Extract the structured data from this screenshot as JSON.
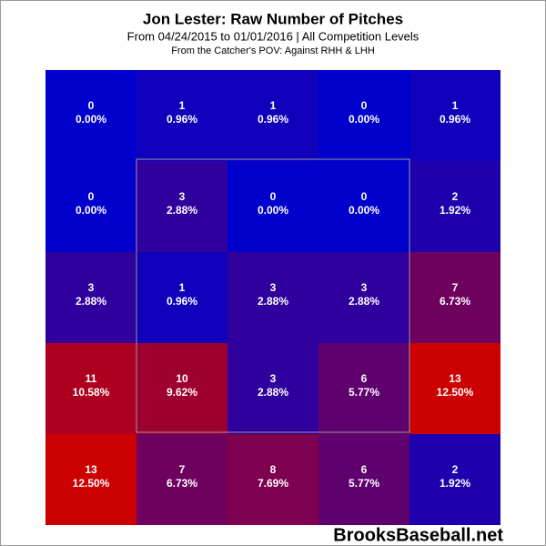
{
  "chart_data": {
    "type": "heatmap",
    "title": "Jon Lester: Raw Number of Pitches",
    "subtitle": "From 04/24/2015 to 01/01/2016 | All Competition Levels",
    "note": "From the Catcher's POV:  Against RHH & LHH",
    "watermark": "BrooksBaseball.net",
    "values": [
      [
        0,
        1,
        1,
        0,
        1
      ],
      [
        0,
        3,
        0,
        0,
        2
      ],
      [
        3,
        1,
        3,
        3,
        7
      ],
      [
        11,
        10,
        3,
        6,
        13
      ],
      [
        13,
        7,
        8,
        6,
        2
      ]
    ],
    "shares": [
      [
        0.0,
        0.96,
        0.96,
        0.0,
        0.96
      ],
      [
        0.0,
        2.88,
        0.0,
        0.0,
        1.92
      ],
      [
        2.88,
        0.96,
        2.88,
        2.88,
        6.73
      ],
      [
        10.58,
        9.62,
        2.88,
        5.77,
        12.5
      ],
      [
        12.5,
        6.73,
        7.69,
        5.77,
        1.92
      ]
    ],
    "share_labels": [
      [
        "0.00%",
        "0.96%",
        "0.96%",
        "0.00%",
        "0.96%"
      ],
      [
        "0.00%",
        "2.88%",
        "0.00%",
        "0.00%",
        "1.92%"
      ],
      [
        "2.88%",
        "0.96%",
        "2.88%",
        "2.88%",
        "6.73%"
      ],
      [
        "10.58%",
        "9.62%",
        "2.88%",
        "5.77%",
        "12.50%"
      ],
      [
        "12.50%",
        "6.73%",
        "7.69%",
        "5.77%",
        "1.92%"
      ]
    ],
    "clim": [
      0,
      13
    ],
    "color_low": "#0000cc",
    "color_high": "#cc0000"
  }
}
